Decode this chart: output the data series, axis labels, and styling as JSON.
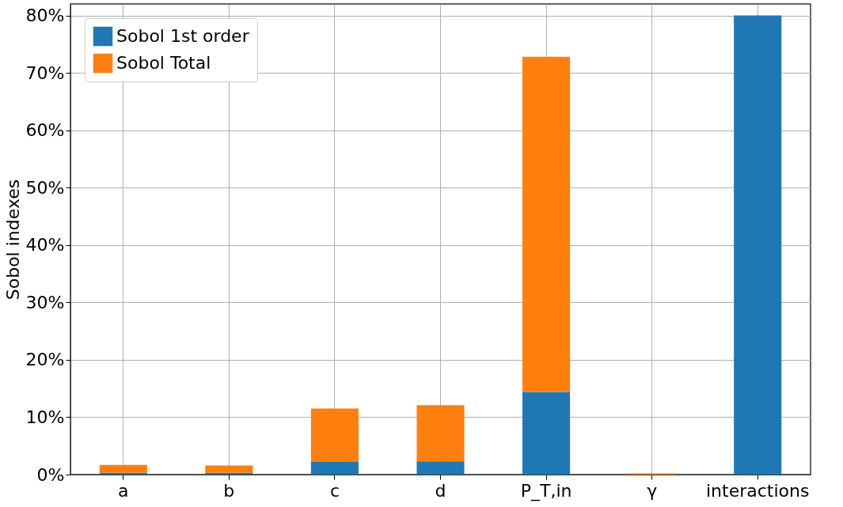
{
  "chart_data": {
    "type": "bar",
    "stacked": true,
    "ylabel": "Sobol indexes",
    "categories": [
      "a",
      "b",
      "c",
      "d",
      "P_T,in",
      "γ",
      "interactions"
    ],
    "series": [
      {
        "name": "Sobol 1st order",
        "color": "#1f77b4",
        "values": [
          0.3,
          0.3,
          2.2,
          2.3,
          14.4,
          0,
          80.0
        ]
      },
      {
        "name": "Sobol Total",
        "color": "#ff7f0e",
        "values": [
          1.4,
          1.3,
          9.3,
          9.8,
          58.4,
          0.2,
          0
        ]
      }
    ],
    "ylim": [
      0,
      82
    ],
    "yticks": [
      {
        "value": 0,
        "label": "0%"
      },
      {
        "value": 10,
        "label": "10%"
      },
      {
        "value": 20,
        "label": "20%"
      },
      {
        "value": 30,
        "label": "30%"
      },
      {
        "value": 40,
        "label": "40%"
      },
      {
        "value": 50,
        "label": "50%"
      },
      {
        "value": 60,
        "label": "60%"
      },
      {
        "value": 70,
        "label": "70%"
      },
      {
        "value": 80,
        "label": "80%"
      }
    ],
    "grid": true,
    "legend": "top left"
  }
}
